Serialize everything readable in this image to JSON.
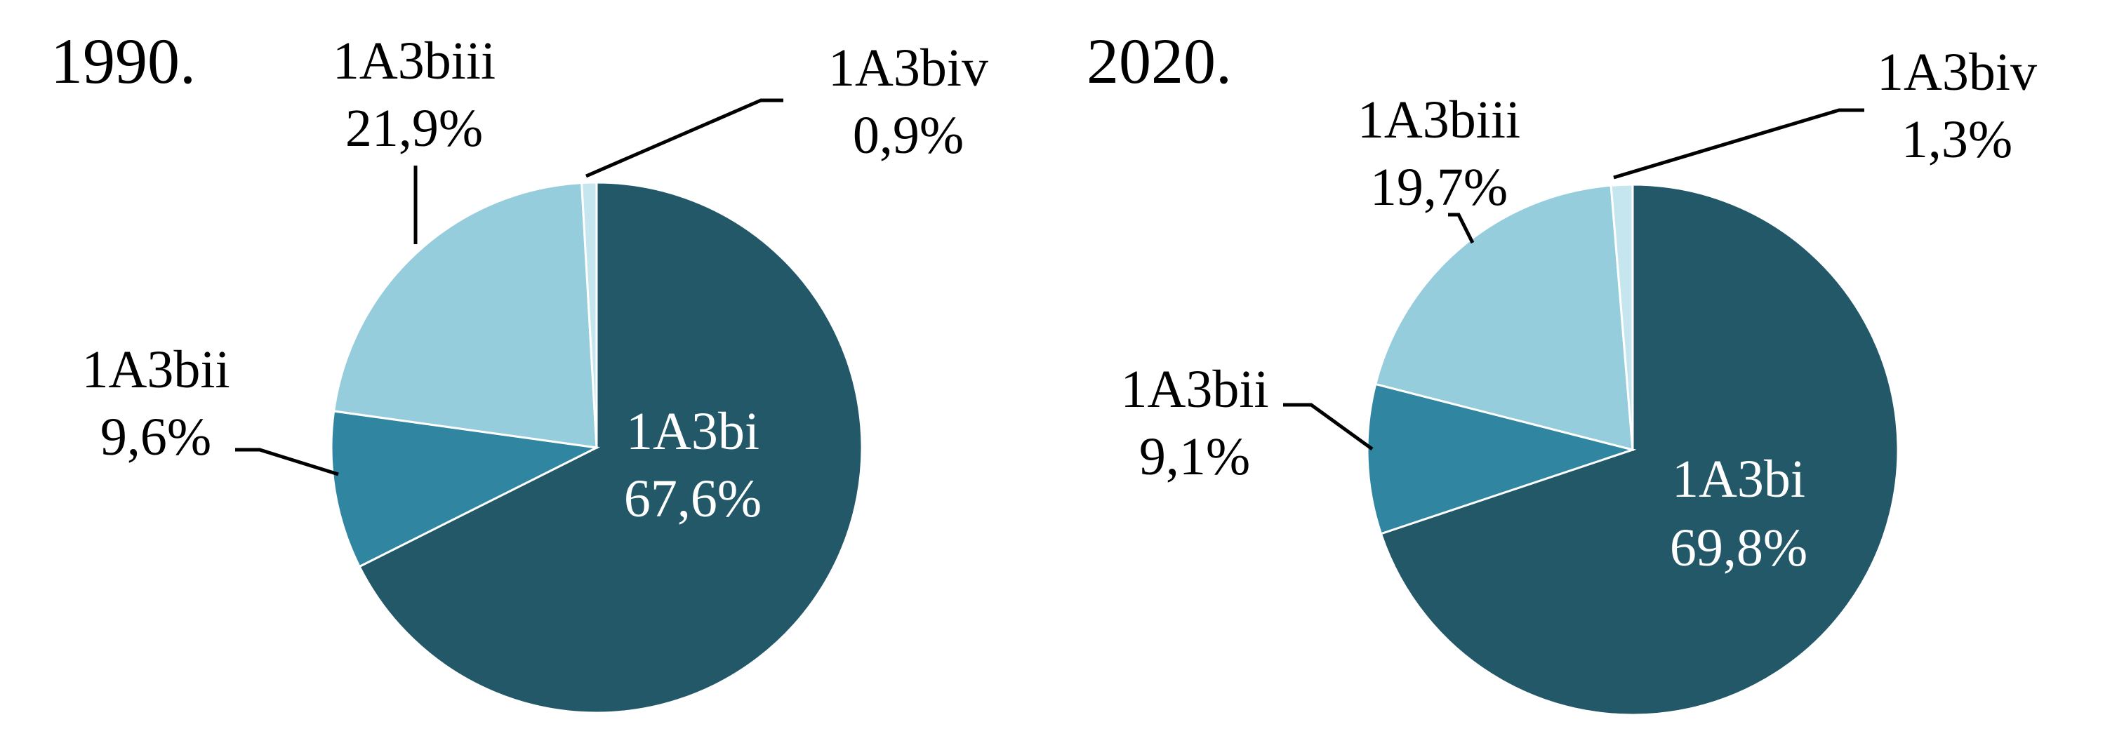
{
  "chart_data": [
    {
      "type": "pie",
      "title": "1990.",
      "categories": [
        "1A3bi",
        "1A3bii",
        "1A3biii",
        "1A3biv"
      ],
      "values": [
        67.6,
        9.6,
        21.9,
        0.9
      ],
      "value_labels": [
        "67,6%",
        "9,6%",
        "21,9%",
        "0,9%"
      ],
      "colors": [
        "#225868",
        "#3085a0",
        "#96cddd",
        "#c6e6ef"
      ]
    },
    {
      "type": "pie",
      "title": "2020.",
      "categories": [
        "1A3bi",
        "1A3bii",
        "1A3biii",
        "1A3biv"
      ],
      "values": [
        69.8,
        9.1,
        19.7,
        1.3
      ],
      "value_labels": [
        "69,8%",
        "9,1%",
        "19,7%",
        "1,3%"
      ],
      "colors": [
        "#225868",
        "#3085a0",
        "#96cddd",
        "#c6e6ef"
      ]
    }
  ]
}
